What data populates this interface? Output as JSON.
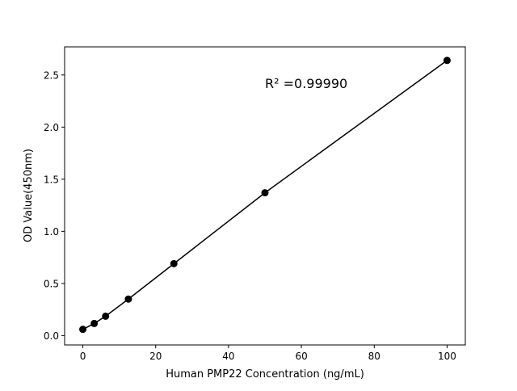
{
  "chart_data": {
    "type": "scatter",
    "title": "",
    "xlabel": "Human PMP22 Concentration (ng/mL)",
    "ylabel": "OD Value(450nm)",
    "xlim": [
      -5,
      105
    ],
    "ylim": [
      -0.09,
      2.77
    ],
    "xticks": [
      0,
      20,
      40,
      60,
      80,
      100
    ],
    "yticks": [
      0.0,
      0.5,
      1.0,
      1.5,
      2.0,
      2.5
    ],
    "xtick_labels": [
      "0",
      "20",
      "40",
      "60",
      "80",
      "100"
    ],
    "ytick_labels": [
      "0.0",
      "0.5",
      "1.0",
      "1.5",
      "2.0",
      "2.5"
    ],
    "grid": false,
    "series": [
      {
        "x": [
          0,
          3.125,
          6.25,
          12.5,
          25,
          50,
          100
        ],
        "y": [
          0.06,
          0.116,
          0.186,
          0.35,
          0.69,
          1.37,
          2.64
        ],
        "color": "#000000",
        "marker": "circle",
        "line": true
      }
    ],
    "annotation": "R² =0.99990"
  }
}
